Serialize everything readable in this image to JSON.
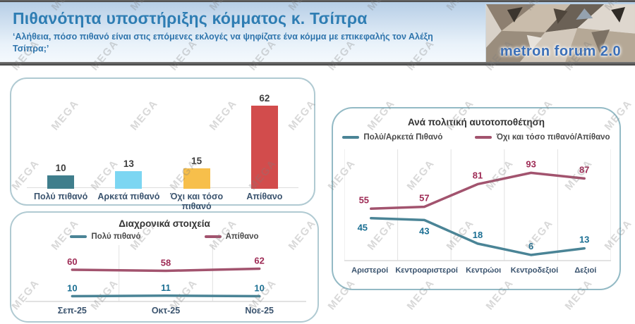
{
  "header": {
    "title": "Πιθανότητα υποστήριξης κόμματος κ. Τσίπρα",
    "subtitle": "‘Αλήθεια, πόσο πιθανό είναι στις επόμενες εκλογές να ψηφίζατε ένα κόμμα με επικεφαλής τον Αλέξη Τσίπρα;’",
    "logo_text": "metron forum 2.0"
  },
  "watermark": {
    "text": "MEGA"
  },
  "colors": {
    "teal_line": "#4a8496",
    "maroon_line": "#a2536e",
    "teal_label": "#1b6f93",
    "maroon_label": "#9e2b55",
    "value_label": "#3e3e3e",
    "axis_label": "#3a536e",
    "gridline": "#e2e2e2",
    "baseline": "#d9d9d9"
  },
  "chart_data": [
    {
      "type": "bar",
      "title": "",
      "categories": [
        "Πολύ πιθανό",
        "Αρκετά πιθανό",
        "Όχι και τόσο πιθανό",
        "Απίθανο"
      ],
      "values": [
        10,
        13,
        15,
        62
      ],
      "bar_colors": [
        "#3f7e8c",
        "#7cd6f2",
        "#f7bf4b",
        "#d24c4c"
      ],
      "ylim": [
        0,
        70
      ],
      "grid": "off",
      "legend_position": "none"
    },
    {
      "type": "line",
      "title": "Διαχρονικά στοιχεία",
      "categories": [
        "Σεπ-25",
        "Οκτ-25",
        "Νοε-25"
      ],
      "series": [
        {
          "name": "Πολύ πιθανό",
          "color": "#4a8496",
          "label_color": "#1b6f93",
          "values": [
            10,
            11,
            10
          ]
        },
        {
          "name": "Απίθανο",
          "color": "#a2536e",
          "label_color": "#9e2b55",
          "values": [
            60,
            58,
            62
          ]
        }
      ],
      "ylim": [
        0,
        80
      ],
      "grid": "vertical",
      "legend_position": "top"
    },
    {
      "type": "line",
      "title": "Ανά πολιτική αυτοτοποθέτηση",
      "categories": [
        "Αριστεροί",
        "Κεντροαριστεροί",
        "Κεντρώοι",
        "Κεντροδεξιοί",
        "Δεξιοί"
      ],
      "series": [
        {
          "name": "Πολύ/Αρκετά Πιθανό",
          "color": "#4a8496",
          "label_color": "#1b6f93",
          "values": [
            45,
            43,
            18,
            6,
            13
          ]
        },
        {
          "name": "Όχι και τόσο πιθανό/Απίθανο",
          "color": "#a2536e",
          "label_color": "#9e2b55",
          "values": [
            55,
            57,
            81,
            93,
            87
          ]
        }
      ],
      "ylim": [
        0,
        100
      ],
      "grid": "vertical",
      "legend_position": "top"
    }
  ]
}
